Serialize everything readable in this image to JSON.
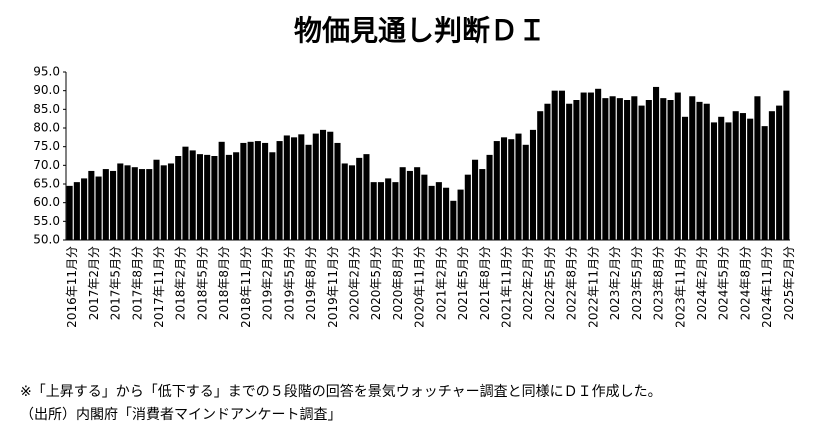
{
  "chart_data": {
    "type": "bar",
    "title": "物価見通し判断ＤＩ",
    "categories": [
      "2016年11月分",
      null,
      null,
      "2017年2月分",
      null,
      null,
      "2017年5月分",
      null,
      null,
      "2017年8月分",
      null,
      null,
      "2017年11月分",
      null,
      null,
      "2018年2月分",
      null,
      null,
      "2018年5月分",
      null,
      null,
      "2018年8月分",
      null,
      null,
      "2018年11月分",
      null,
      null,
      "2019年2月分",
      null,
      null,
      "2019年5月分",
      null,
      null,
      "2019年8月分",
      null,
      null,
      "2019年11月分",
      null,
      null,
      "2020年2月分",
      null,
      null,
      "2020年5月分",
      null,
      null,
      "2020年8月分",
      null,
      null,
      "2020年11月分",
      null,
      null,
      "2021年2月分",
      null,
      null,
      "2021年5月分",
      null,
      null,
      "2021年8月分",
      null,
      null,
      "2021年11月分",
      null,
      null,
      "2022年2月分",
      null,
      null,
      "2022年5月分",
      null,
      null,
      "2022年8月分",
      null,
      null,
      "2022年11月分",
      null,
      null,
      "2023年2月分",
      null,
      null,
      "2023年5月分",
      null,
      null,
      "2023年8月分",
      null,
      null,
      "2023年11月分",
      null,
      null,
      "2024年2月分",
      null,
      null,
      "2024年5月分",
      null,
      null,
      "2024年8月分",
      null,
      null,
      "2024年11月分",
      null,
      null,
      "2025年2月分"
    ],
    "values": [
      64.5,
      65.5,
      66.5,
      68.5,
      67,
      69,
      68.5,
      70.5,
      70,
      69.5,
      69,
      69,
      71.5,
      70,
      70.5,
      72.5,
      75,
      74,
      73,
      72.8,
      72.5,
      76.3,
      72.8,
      73.5,
      76,
      76.3,
      76.5,
      76,
      73.5,
      76.5,
      78,
      77.5,
      78.3,
      75.5,
      78.5,
      79.5,
      79,
      76,
      70.5,
      70,
      72,
      73,
      65.5,
      65.5,
      66.5,
      65.5,
      69.5,
      68.5,
      69.5,
      67.5,
      64.5,
      65.5,
      64,
      60.5,
      63.5,
      67.5,
      71.5,
      69,
      72.8,
      76.5,
      77.5,
      77,
      78.5,
      75.5,
      79.5,
      84.5,
      86.5,
      90,
      90,
      86.5,
      87.5,
      89.5,
      89.5,
      90.5,
      88,
      88.5,
      88,
      87.5,
      88.5,
      86,
      87.5,
      91,
      88,
      87.5,
      89.5,
      83,
      88.5,
      87,
      86.5,
      81.5,
      83,
      81.5,
      84.5,
      84,
      82.5,
      88.5,
      80.5,
      84.5,
      86,
      90
    ],
    "color": "#000000",
    "ylim": [
      50,
      95
    ],
    "yticks": [
      {
        "value": 50,
        "label": "50.0"
      },
      {
        "value": 55,
        "label": "55.0"
      },
      {
        "value": 60,
        "label": "60.0"
      },
      {
        "value": 65,
        "label": "65.0"
      },
      {
        "value": 70,
        "label": "70.0"
      },
      {
        "value": 75,
        "label": "75.0"
      },
      {
        "value": 80,
        "label": "80.0"
      },
      {
        "value": 85,
        "label": "85.0"
      },
      {
        "value": 90,
        "label": "90.0"
      },
      {
        "value": 95,
        "label": "95.0"
      }
    ],
    "grid": false,
    "notes": [
      "※「上昇する」から「低下する」までの５段階の回答を景気ウォッチャー調査と同様にＤＩ作成した。",
      "（出所）内閣府「消費者マインドアンケート調査」"
    ]
  }
}
